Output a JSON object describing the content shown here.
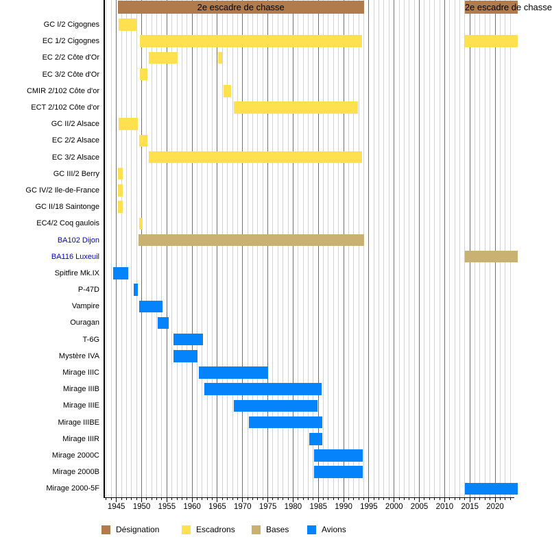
{
  "chart_data": {
    "type": "bar",
    "variant": "timeline-gantt",
    "title_bars": [
      {
        "label": "2e escadre de chasse",
        "start": 1945.3,
        "end": 1994.0
      },
      {
        "label": "2e escadre de chasse",
        "start": 2014.0,
        "end": 2024.5
      }
    ],
    "x_axis": {
      "year_min": 1942.6,
      "year_max": 2023.8,
      "major_tick_years": [
        1945,
        1950,
        1955,
        1960,
        1965,
        1970,
        1975,
        1980,
        1985,
        1990,
        1995,
        2000,
        2005,
        2010,
        2015,
        2020
      ],
      "minor_tick_step": 1,
      "grid": true
    },
    "colors": {
      "designation": "#b17b4c",
      "escadrons": "#ffe14f",
      "bases": "#c9b173",
      "avions": "#0583fa",
      "base_label": "#0000cc",
      "grid_minor": "#d2d2d2",
      "grid_major": "#707070",
      "axis": "#000000"
    },
    "rows": [
      {
        "label": "GC I/2 Cigognes",
        "type": "escadrons",
        "bars": [
          [
            1945.4,
            1949.1
          ]
        ]
      },
      {
        "label": "EC 1/2 Cigognes",
        "type": "escadrons",
        "bars": [
          [
            1949.6,
            1993.7
          ],
          [
            2014.0,
            2024.5
          ]
        ]
      },
      {
        "label": "EC 2/2 Côte d'Or",
        "type": "escadrons",
        "bars": [
          [
            1951.4,
            1957.1
          ],
          [
            1965.2,
            1966.0
          ]
        ]
      },
      {
        "label": "EC 3/2 Côte d'Or",
        "type": "escadrons",
        "bars": [
          [
            1949.6,
            1951.1
          ]
        ]
      },
      {
        "label": "CMIR 2/102 Côte d'or",
        "type": "escadrons",
        "bars": [
          [
            1966.2,
            1967.7
          ]
        ]
      },
      {
        "label": "ECT 2/102 Côte d'or",
        "type": "escadrons",
        "bars": [
          [
            1968.3,
            1992.9
          ]
        ]
      },
      {
        "label": "GC II/2 Alsace",
        "type": "escadrons",
        "bars": [
          [
            1945.4,
            1949.3
          ]
        ]
      },
      {
        "label": "EC 2/2 Alsace",
        "type": "escadrons",
        "bars": [
          [
            1949.5,
            1951.1
          ]
        ]
      },
      {
        "label": "EC 3/2 Alsace",
        "type": "escadrons",
        "bars": [
          [
            1951.4,
            1993.7
          ]
        ]
      },
      {
        "label": "GC III/2 Berry",
        "type": "escadrons",
        "bars": [
          [
            1945.3,
            1946.3
          ]
        ]
      },
      {
        "label": "GC IV/2 Ile-de-France",
        "type": "escadrons",
        "bars": [
          [
            1945.3,
            1946.3
          ]
        ]
      },
      {
        "label": "GC II/18 Saintonge",
        "type": "escadrons",
        "bars": [
          [
            1945.3,
            1946.3
          ]
        ]
      },
      {
        "label": "EC4/2 Coq gaulois",
        "type": "escadrons",
        "bars": [
          [
            1949.5,
            1950.2
          ]
        ]
      },
      {
        "label": "BA102 Dijon",
        "type": "bases",
        "bars": [
          [
            1949.4,
            1994.0
          ]
        ]
      },
      {
        "label": "BA116 Luxeuil",
        "type": "bases",
        "bars": [
          [
            2014.0,
            2024.5
          ]
        ]
      },
      {
        "label": "Spitfire Mk.IX",
        "type": "avions",
        "bars": [
          [
            1944.3,
            1947.3
          ]
        ]
      },
      {
        "label": "P-47D",
        "type": "avions",
        "bars": [
          [
            1948.4,
            1949.2
          ]
        ]
      },
      {
        "label": "Vampire",
        "type": "avions",
        "bars": [
          [
            1949.5,
            1954.2
          ]
        ]
      },
      {
        "label": "Ouragan",
        "type": "avions",
        "bars": [
          [
            1953.2,
            1955.3
          ]
        ]
      },
      {
        "label": "T-6G",
        "type": "avions",
        "bars": [
          [
            1956.3,
            1962.2
          ]
        ]
      },
      {
        "label": "Mystère IVA",
        "type": "avions",
        "bars": [
          [
            1956.3,
            1961.0
          ]
        ]
      },
      {
        "label": "Mirage IIIC",
        "type": "avions",
        "bars": [
          [
            1961.4,
            1975.1
          ]
        ]
      },
      {
        "label": "Mirage IIIB",
        "type": "avions",
        "bars": [
          [
            1962.4,
            1985.7
          ]
        ]
      },
      {
        "label": "Mirage IIIE",
        "type": "avions",
        "bars": [
          [
            1968.2,
            1984.8
          ]
        ]
      },
      {
        "label": "Mirage IIIBE",
        "type": "avions",
        "bars": [
          [
            1971.3,
            1985.8
          ]
        ]
      },
      {
        "label": "Mirage IIIR",
        "type": "avions",
        "bars": [
          [
            1983.2,
            1985.8
          ]
        ]
      },
      {
        "label": "Mirage 2000C",
        "type": "avions",
        "bars": [
          [
            1984.1,
            1993.8
          ]
        ]
      },
      {
        "label": "Mirage 2000B",
        "type": "avions",
        "bars": [
          [
            1984.1,
            1993.8
          ]
        ]
      },
      {
        "label": "Mirage 2000-5F",
        "type": "avions",
        "bars": [
          [
            2014.0,
            2024.5
          ]
        ]
      }
    ],
    "legend": [
      {
        "label": "Désignation",
        "type": "designation"
      },
      {
        "label": "Escadrons",
        "type": "escadrons"
      },
      {
        "label": "Bases",
        "type": "bases"
      },
      {
        "label": "Avions",
        "type": "avions"
      }
    ]
  }
}
